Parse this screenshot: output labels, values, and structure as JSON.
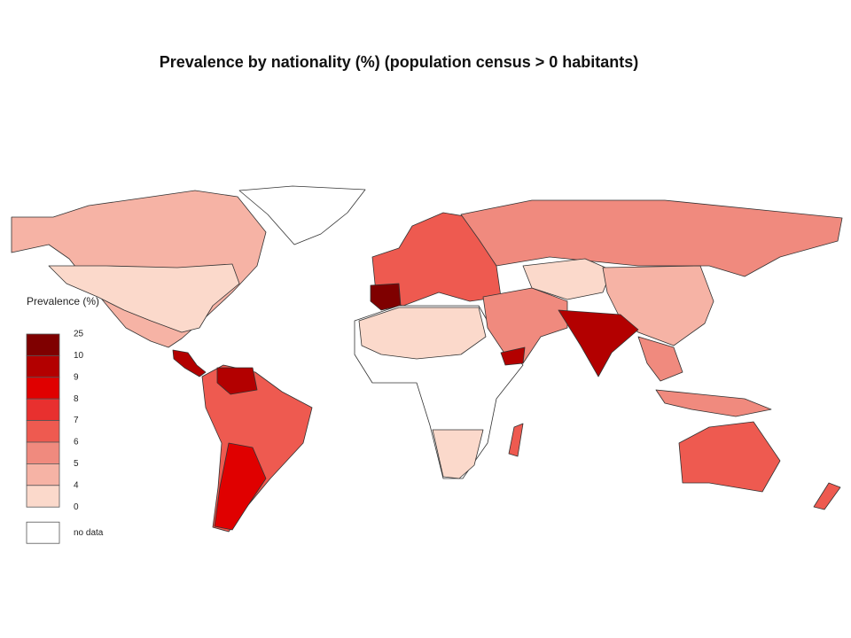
{
  "title": "Prevalence by nationality (%) (population census > 0 habitants)",
  "legend": {
    "title": "Prevalence (%)",
    "breaks": [
      25,
      10,
      9,
      8,
      7,
      6,
      5,
      4,
      0
    ],
    "colors": [
      "#7f0000",
      "#b30000",
      "#e00000",
      "#e8302f",
      "#ee5a50",
      "#f08a7e",
      "#f6b3a5",
      "#fbd9cb"
    ],
    "no_data": "no data"
  }
}
